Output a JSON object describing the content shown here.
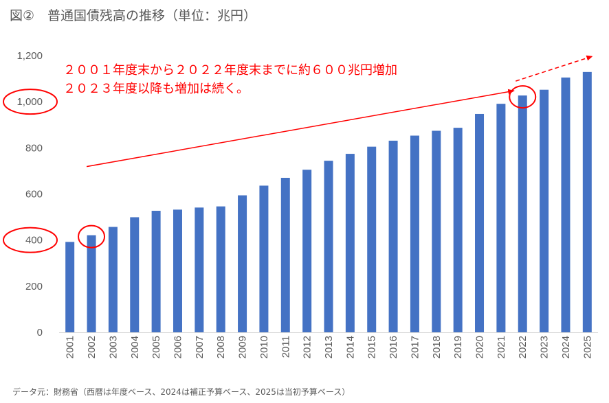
{
  "title": "図②　普通国債残高の推移（単位：兆円）",
  "source_note": "データ元：財務省（西暦は年度ベース、2024は補正予算ベース、2025は当初予算ベース）",
  "colors": {
    "bar": "#4472c4",
    "annotation": "#ff0000",
    "axis_text": "#595959"
  },
  "chart_data": {
    "type": "bar",
    "categories": [
      "2001",
      "2002",
      "2003",
      "2004",
      "2005",
      "2006",
      "2007",
      "2008",
      "2009",
      "2010",
      "2011",
      "2012",
      "2013",
      "2014",
      "2015",
      "2016",
      "2017",
      "2018",
      "2019",
      "2020",
      "2021",
      "2022",
      "2023",
      "2024",
      "2025"
    ],
    "series": [
      {
        "values": [
          392,
          421,
          457,
          499,
          527,
          532,
          541,
          546,
          594,
          636,
          670,
          705,
          744,
          774,
          805,
          831,
          853,
          874,
          887,
          947,
          991,
          1027,
          1052,
          1105,
          1129
        ]
      }
    ],
    "ylim": [
      0,
      1200
    ],
    "yticks": [
      0,
      200,
      400,
      600,
      800,
      1000,
      1200
    ],
    "ytick_labels": [
      "0",
      "200",
      "400",
      "600",
      "800",
      "1,000",
      "1,200"
    ],
    "circled_ytick_labels": [
      "400",
      "1,000"
    ],
    "circled_categories": [
      "2002",
      "2022"
    ],
    "annotations": [
      "２００１年度末から２０２２年度末までに約６００兆円増加",
      "２０２３年度以降も増加は続く。"
    ],
    "trend_arrow": {
      "from": "2002",
      "to": "2022",
      "dashed_extension_to": "2025"
    },
    "grid": false,
    "legend": "none"
  }
}
